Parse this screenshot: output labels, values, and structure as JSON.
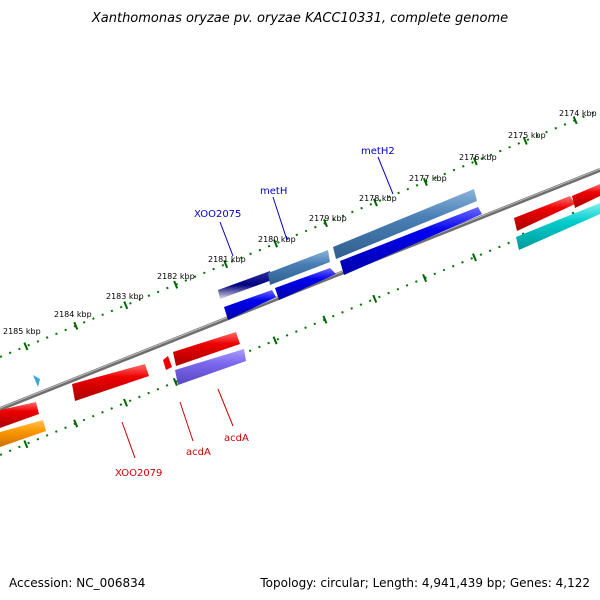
{
  "title": "Xanthomonas oryzae pv. oryzae KACC10331, complete genome",
  "outer_ticks": [
    {
      "label": "2174 kbp"
    },
    {
      "label": "2175 kbp"
    },
    {
      "label": "2176 kbp"
    },
    {
      "label": "2177 kbp"
    },
    {
      "label": "2178 kbp"
    },
    {
      "label": "2179 kbp"
    },
    {
      "label": "2180 kbp"
    },
    {
      "label": "2181 kbp"
    },
    {
      "label": "2182 kbp"
    },
    {
      "label": "2183 kbp"
    },
    {
      "label": "2184 kbp"
    },
    {
      "label": "2185 kbp"
    }
  ],
  "gene_labels": {
    "XOO2075": "XOO2075",
    "metH": "metH",
    "metH2": "metH2",
    "XOO2079": "XOO2079",
    "acdA_1": "acdA",
    "acdA_2": "acdA"
  },
  "colors": {
    "forward_gene": "#0000ee",
    "reverse_gene": "#ee0000",
    "steel": "#4a7fb5",
    "navy": "#000080",
    "purple": "#7b68ee",
    "orange": "#ff9900",
    "cyan": "#00cccc",
    "tick_green": "#006600",
    "backbone": "#888888"
  },
  "footer": {
    "accession": "Accession: NC_006834",
    "topology": "Topology: circular; Length: 4,941,439 bp; Genes: 4,122"
  }
}
